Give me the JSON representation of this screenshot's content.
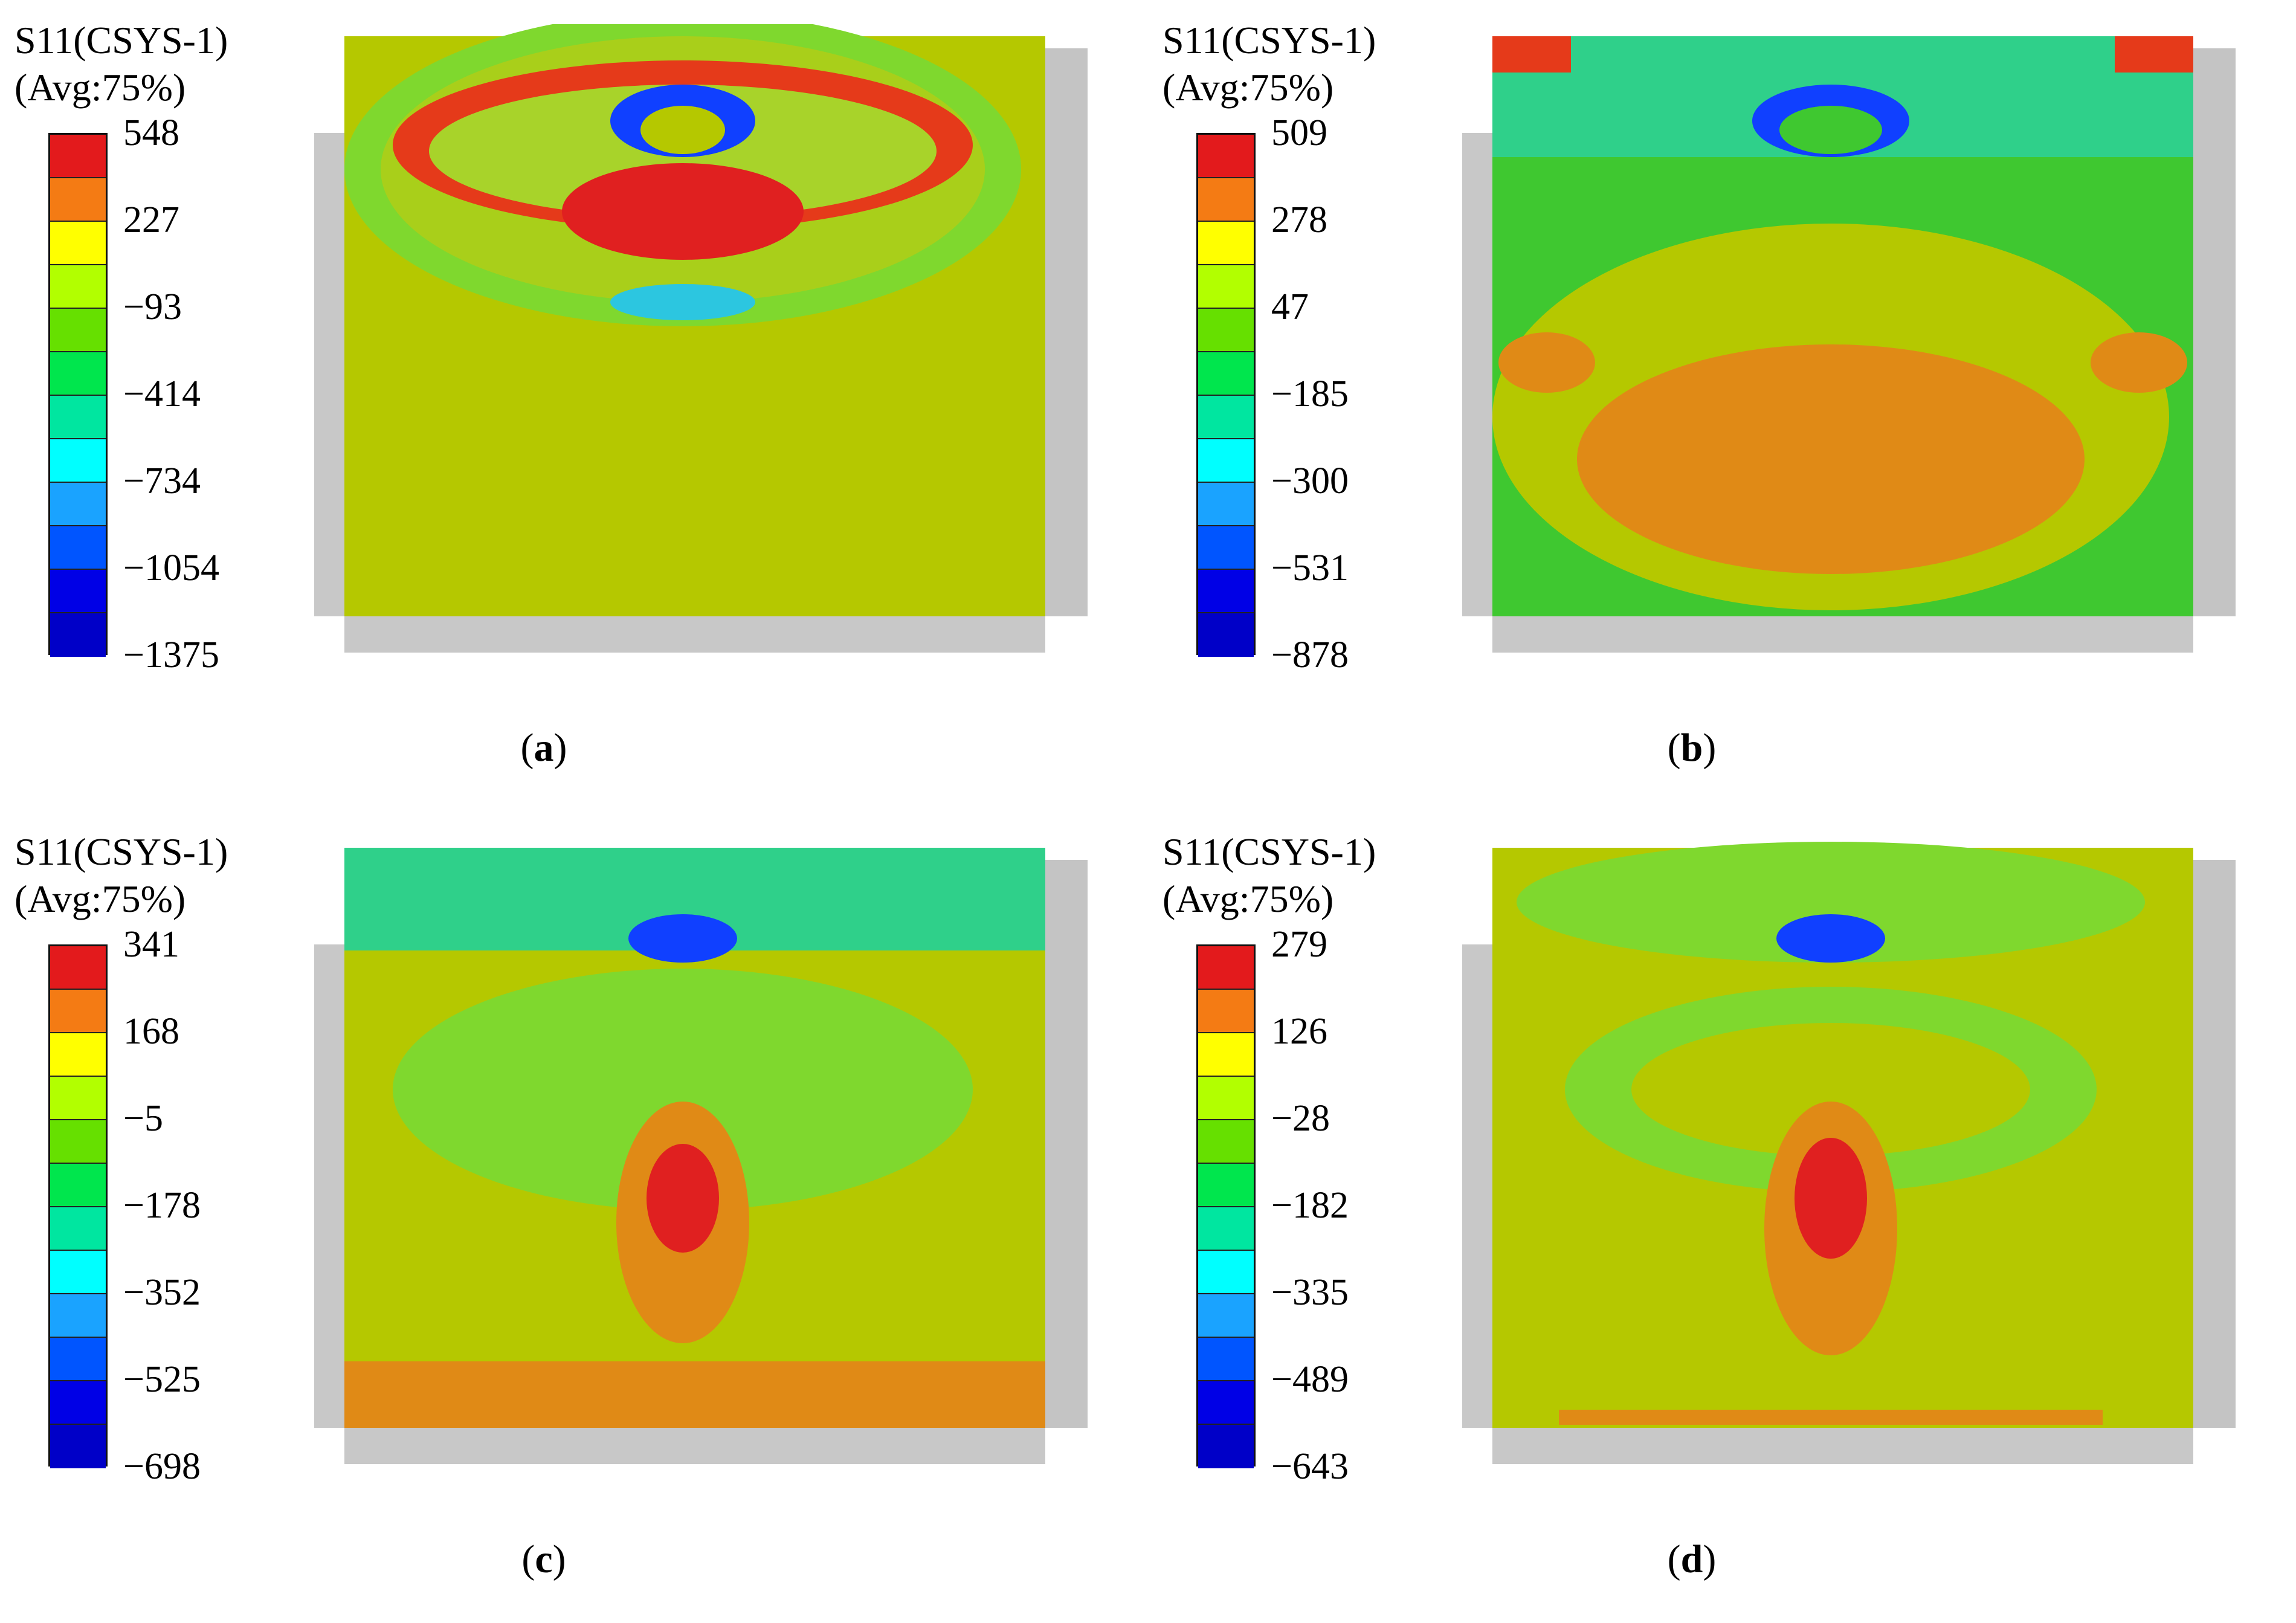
{
  "colors": [
    "#e31a1c",
    "#f47b14",
    "#ffff00",
    "#b2ff00",
    "#66e000",
    "#00e64d",
    "#00e6a0",
    "#00ffff",
    "#1aa3ff",
    "#0055ff",
    "#0000e6",
    "#0000c8"
  ],
  "panels": [
    {
      "title_line1": "S11(CSYS-1)",
      "title_line2": "(Avg:75%)",
      "ticks": [
        "548",
        "227",
        "−93",
        "−414",
        "−734",
        "−1054",
        "−1375"
      ],
      "caption_open": "(",
      "caption_letter": "a",
      "caption_close": ")"
    },
    {
      "title_line1": "S11(CSYS-1)",
      "title_line2": "(Avg:75%)",
      "ticks": [
        "509",
        "278",
        "47",
        "−185",
        "−300",
        "−531",
        "−878"
      ],
      "caption_open": "(",
      "caption_letter": "b",
      "caption_close": ")"
    },
    {
      "title_line1": "S11(CSYS-1)",
      "title_line2": "(Avg:75%)",
      "ticks": [
        "341",
        "168",
        "−5",
        "−178",
        "−352",
        "−525",
        "−698"
      ],
      "caption_open": "(",
      "caption_letter": "c",
      "caption_close": ")"
    },
    {
      "title_line1": "S11(CSYS-1)",
      "title_line2": "(Avg:75%)",
      "ticks": [
        "279",
        "126",
        "−28",
        "−182",
        "−335",
        "−489",
        "−643"
      ],
      "caption_open": "(",
      "caption_letter": "d",
      "caption_close": ")"
    }
  ]
}
